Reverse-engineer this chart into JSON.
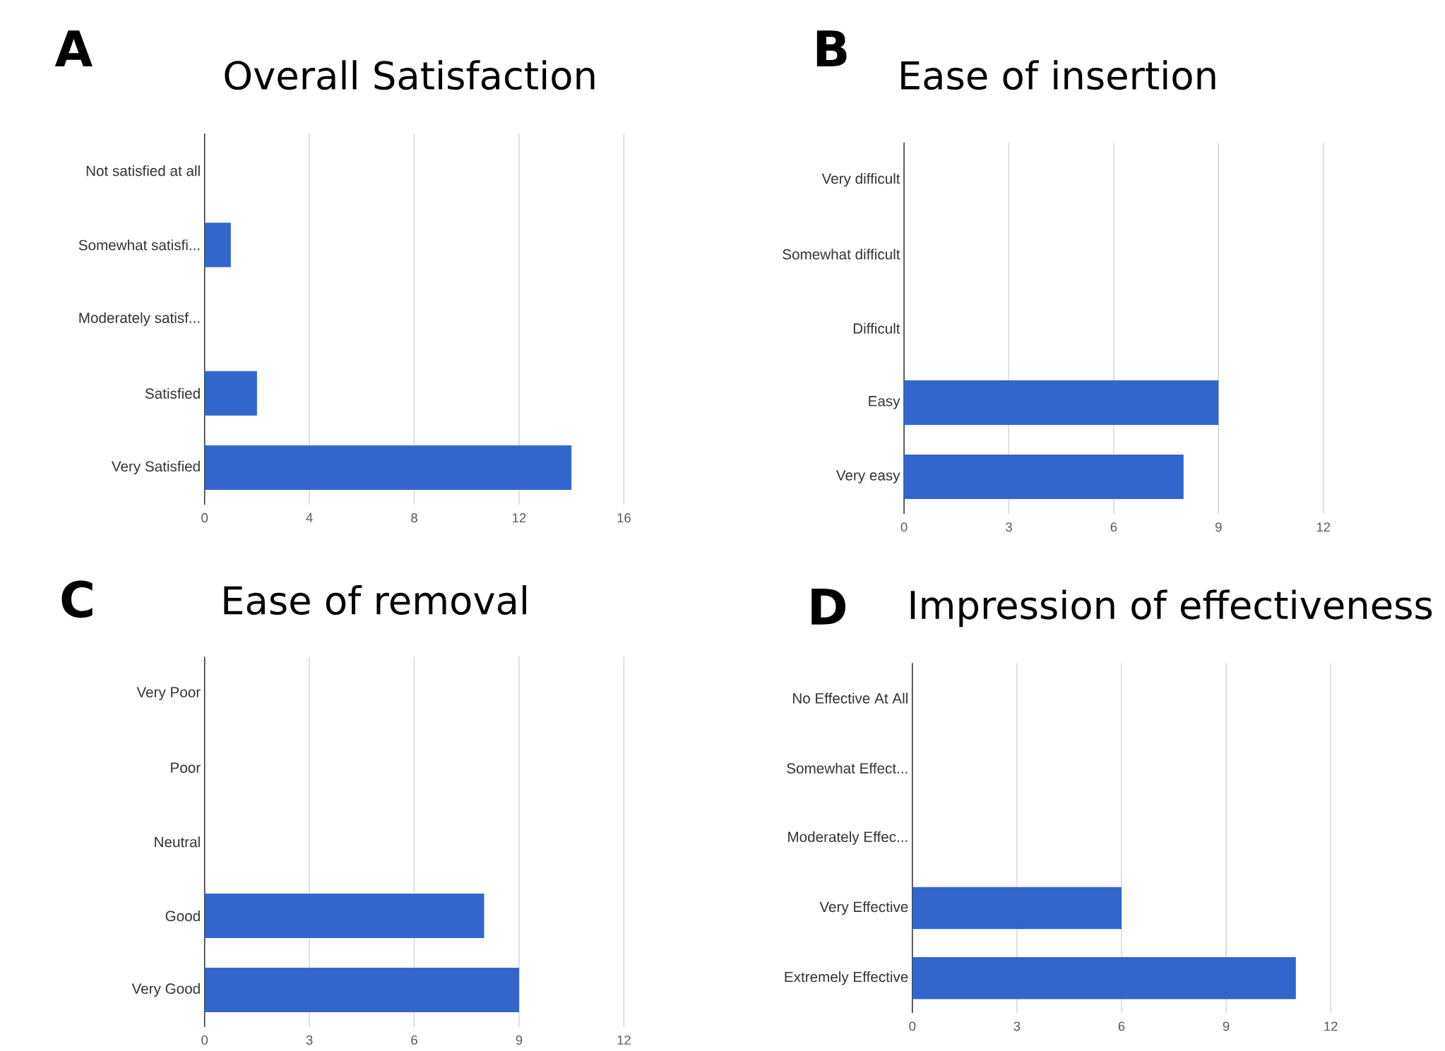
{
  "chart_data": [
    {
      "type": "bar",
      "orientation": "horizontal",
      "title": "Overall Satisfaction",
      "annotations": [
        "A"
      ],
      "categories": [
        "Not satisfied at all",
        "Somewhat satisfi...",
        "Moderately satisf...",
        "Satisfied",
        "Very Satisfied"
      ],
      "values": [
        0,
        1,
        0,
        2,
        14
      ],
      "color": "#3366cc",
      "xlim": [
        0,
        16
      ],
      "xticks": [
        0,
        4,
        8,
        12,
        16
      ],
      "grid": "x"
    },
    {
      "type": "bar",
      "orientation": "horizontal",
      "title": "Ease of insertion",
      "annotations": [
        "B"
      ],
      "categories": [
        "Very difficult",
        "Somewhat difficult",
        "Difficult",
        "Easy",
        "Very easy"
      ],
      "values": [
        0,
        0,
        0,
        9,
        8
      ],
      "color": "#3366cc",
      "xlim": [
        0,
        12
      ],
      "xticks": [
        0,
        3,
        6,
        9,
        12
      ],
      "grid": "x"
    },
    {
      "type": "bar",
      "orientation": "horizontal",
      "title": "Ease of removal",
      "annotations": [
        "C"
      ],
      "categories": [
        "Very Poor",
        "Poor",
        "Neutral",
        "Good",
        "Very Good"
      ],
      "values": [
        0,
        0,
        0,
        8,
        9
      ],
      "color": "#3366cc",
      "xlim": [
        0,
        12
      ],
      "xticks": [
        0,
        3,
        6,
        9,
        12
      ],
      "grid": "x"
    },
    {
      "type": "bar",
      "orientation": "horizontal",
      "title": "Impression of effectiveness",
      "annotations": [
        "D"
      ],
      "categories": [
        "No Effective At All",
        "Somewhat Effect...",
        "Moderately Effec...",
        "Very Effective",
        "Extremely Effective"
      ],
      "values": [
        0,
        0,
        0,
        6,
        11
      ],
      "color": "#3366cc",
      "xlim": [
        0,
        12
      ],
      "xticks": [
        0,
        3,
        6,
        9,
        12
      ],
      "grid": "x"
    }
  ]
}
